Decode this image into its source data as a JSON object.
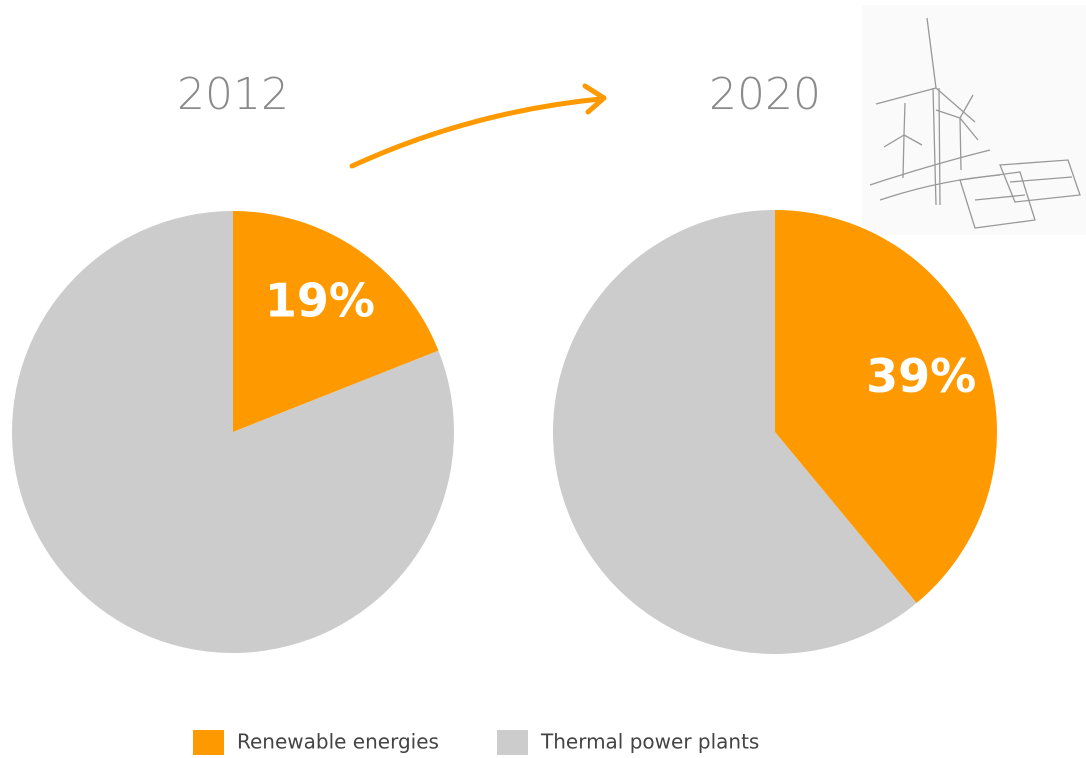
{
  "chart_data": [
    {
      "type": "pie",
      "title": "2012",
      "values": [
        19,
        81
      ],
      "value_labels": [
        "19%",
        null
      ]
    },
    {
      "type": "pie",
      "title": "2020",
      "values": [
        39,
        61
      ],
      "value_labels": [
        "39%",
        null
      ]
    }
  ],
  "legend": {
    "items": [
      {
        "name": "Renewable energies",
        "color": "#ff9900"
      },
      {
        "name": "Thermal power plants",
        "color": "#cccccc"
      }
    ]
  }
}
